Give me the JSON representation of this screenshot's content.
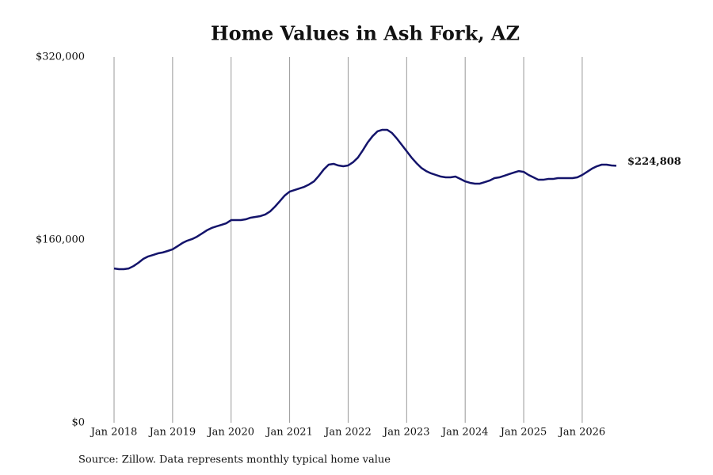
{
  "chart_data": {
    "type": "line",
    "title": "Home Values in Ash Fork, AZ",
    "source": "Source: Zillow. Data represents monthly typical home value",
    "x": [
      "2018-01",
      "2018-02",
      "2018-03",
      "2018-04",
      "2018-05",
      "2018-06",
      "2018-07",
      "2018-08",
      "2018-09",
      "2018-10",
      "2018-11",
      "2018-12",
      "2019-01",
      "2019-02",
      "2019-03",
      "2019-04",
      "2019-05",
      "2019-06",
      "2019-07",
      "2019-08",
      "2019-09",
      "2019-10",
      "2019-11",
      "2019-12",
      "2020-01",
      "2020-02",
      "2020-03",
      "2020-04",
      "2020-05",
      "2020-06",
      "2020-07",
      "2020-08",
      "2020-09",
      "2020-10",
      "2020-11",
      "2020-12",
      "2021-01",
      "2021-02",
      "2021-03",
      "2021-04",
      "2021-05",
      "2021-06",
      "2021-07",
      "2021-08",
      "2021-09",
      "2021-10",
      "2021-11",
      "2021-12",
      "2022-01",
      "2022-02",
      "2022-03",
      "2022-04",
      "2022-05",
      "2022-06",
      "2022-07",
      "2022-08",
      "2022-09",
      "2022-10",
      "2022-11",
      "2022-12",
      "2023-01",
      "2023-02",
      "2023-03",
      "2023-04",
      "2023-05",
      "2023-06",
      "2023-07",
      "2023-08",
      "2023-09",
      "2023-10",
      "2023-11",
      "2023-12",
      "2024-01",
      "2024-02",
      "2024-03",
      "2024-04",
      "2024-05",
      "2024-06",
      "2024-07",
      "2024-08",
      "2024-09",
      "2024-10",
      "2024-11",
      "2024-12",
      "2025-01",
      "2025-02",
      "2025-03",
      "2025-04",
      "2025-05",
      "2025-06",
      "2025-07",
      "2025-08",
      "2025-09",
      "2025-10",
      "2025-11",
      "2025-12",
      "2026-01",
      "2026-02",
      "2026-03",
      "2026-04",
      "2026-05",
      "2026-06",
      "2026-07",
      "2026-08"
    ],
    "series": [
      {
        "color": "#14146b",
        "values": [
          135000,
          134400,
          134400,
          135000,
          137100,
          140000,
          143400,
          145500,
          146800,
          148200,
          149000,
          150300,
          151700,
          154400,
          157200,
          159300,
          160700,
          162800,
          165500,
          168300,
          170400,
          171800,
          173100,
          174500,
          177300,
          177300,
          177300,
          178000,
          179400,
          180100,
          180800,
          182200,
          184900,
          189100,
          193900,
          198800,
          202200,
          203600,
          205000,
          206400,
          208500,
          211200,
          216100,
          221600,
          225800,
          226500,
          225100,
          224400,
          225100,
          227900,
          232000,
          238300,
          245200,
          250700,
          254900,
          256300,
          256300,
          253500,
          248600,
          243100,
          237600,
          232000,
          227200,
          223000,
          220200,
          218200,
          216800,
          215400,
          214700,
          214700,
          215400,
          213300,
          211200,
          209900,
          209200,
          209200,
          210500,
          211900,
          214000,
          214700,
          216100,
          217500,
          218900,
          220200,
          219500,
          216800,
          214700,
          212600,
          212600,
          213300,
          213300,
          214000,
          214000,
          214000,
          214000,
          214700,
          216800,
          219500,
          222300,
          224400,
          225800,
          225800,
          225100,
          224808
        ]
      }
    ],
    "last_value_label": "$224,808",
    "xlim": [
      "2018-01",
      "2026-08"
    ],
    "xticks": [
      {
        "value": "2018-01",
        "label": "Jan 2018"
      },
      {
        "value": "2019-01",
        "label": "Jan 2019"
      },
      {
        "value": "2020-01",
        "label": "Jan 2020"
      },
      {
        "value": "2021-01",
        "label": "Jan 2021"
      },
      {
        "value": "2022-01",
        "label": "Jan 2022"
      },
      {
        "value": "2023-01",
        "label": "Jan 2023"
      },
      {
        "value": "2024-01",
        "label": "Jan 2024"
      },
      {
        "value": "2025-01",
        "label": "Jan 2025"
      },
      {
        "value": "2026-01",
        "label": "Jan 2026"
      }
    ],
    "ylim": [
      0,
      320000
    ],
    "yticks": [
      {
        "value": 0,
        "label": "$0"
      },
      {
        "value": 160000,
        "label": "$160,000"
      },
      {
        "value": 320000,
        "label": "$320,000"
      }
    ],
    "grid": "x"
  }
}
